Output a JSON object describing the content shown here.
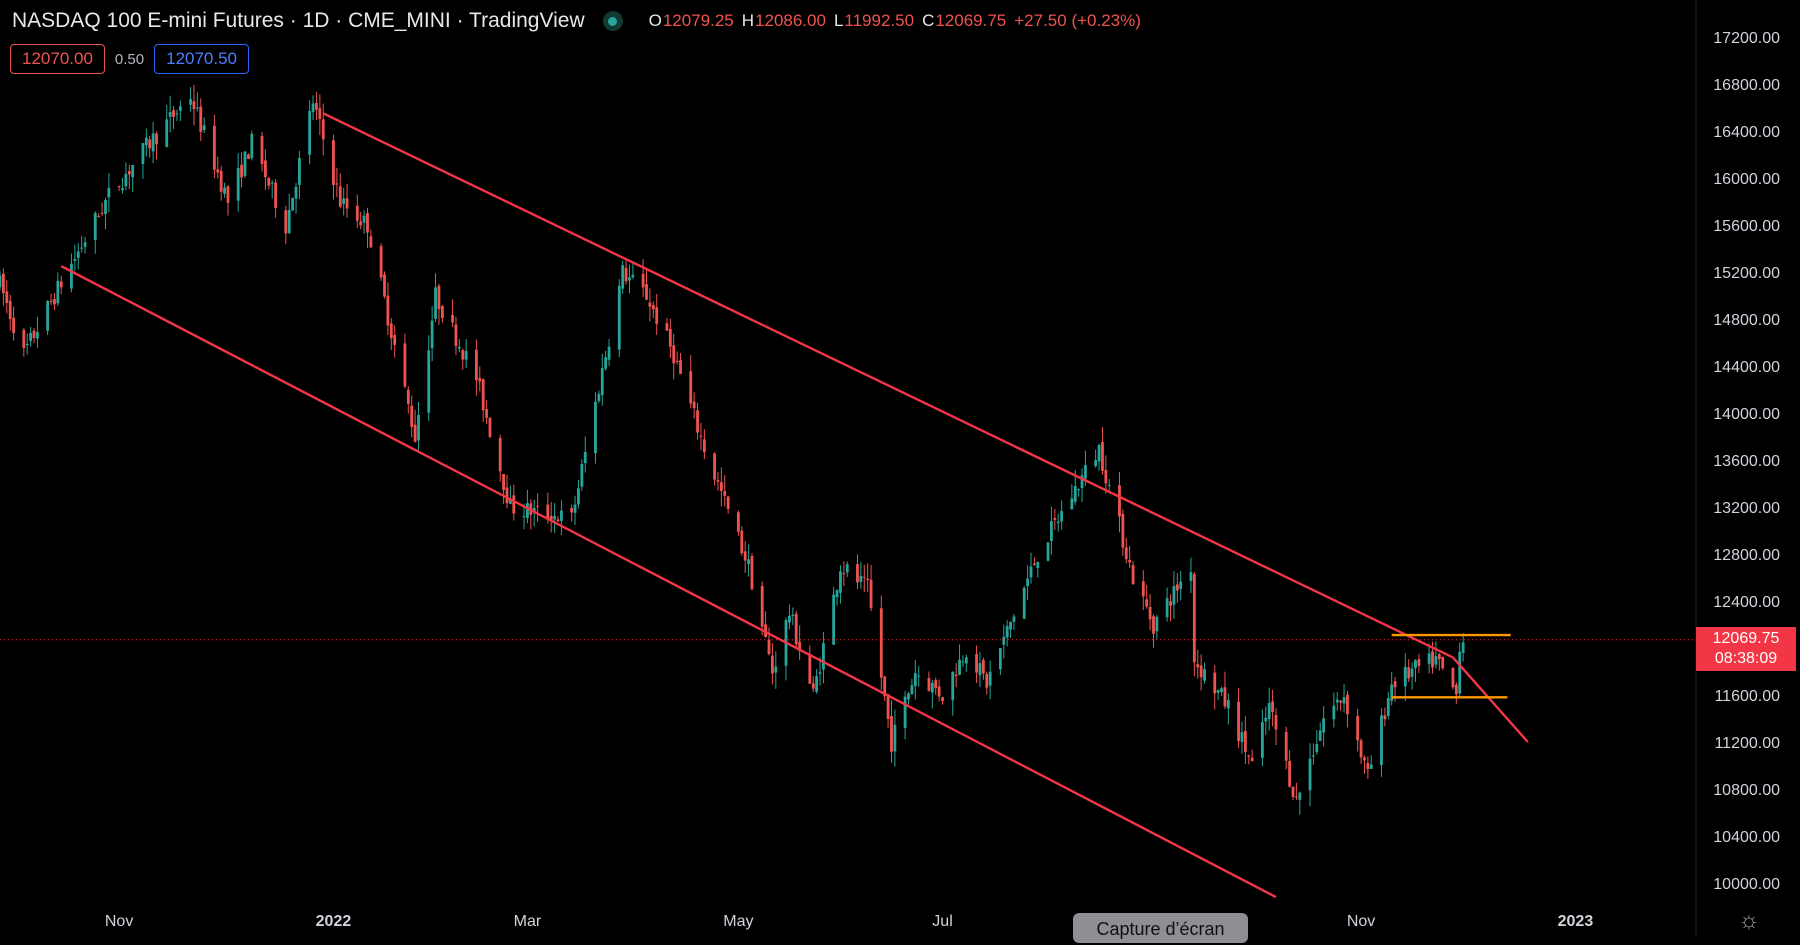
{
  "header": {
    "title": "NASDAQ 100 E-mini Futures · 1D · CME_MINI · TradingView",
    "ohlc": [
      {
        "k": "O",
        "v": "12079.25"
      },
      {
        "k": "H",
        "v": "12086.00"
      },
      {
        "k": "L",
        "v": "11992.50"
      },
      {
        "k": "C",
        "v": "12069.75"
      }
    ],
    "change": "+27.50 (+0.23%)"
  },
  "trade": {
    "sell": "12070.00",
    "spread": "0.50",
    "buy": "12070.50"
  },
  "last_price": {
    "price": "12069.75",
    "countdown": "08:38:09"
  },
  "overlay_label": "Capture d’écran",
  "colors": {
    "up": "#26a69a",
    "down": "#ef5350",
    "channel": "#f23645",
    "range": "#ff9800",
    "bg": "#000000"
  },
  "chart_data": {
    "type": "candlestick",
    "title": "NASDAQ 100 E-mini Futures · 1D · CME_MINI · TradingView",
    "ylim": [
      9800,
      17400
    ],
    "y_ticks": [
      10000,
      10400,
      10800,
      11200,
      11600,
      12000,
      12400,
      12800,
      13200,
      13600,
      14000,
      14400,
      14800,
      15200,
      15600,
      16000,
      16400,
      16800,
      17200
    ],
    "y_tick_labels": [
      "10000.00",
      "10400.00",
      "10800.00",
      "11200.00",
      "11600.00",
      "12000.00",
      "12400.00",
      "12800.00",
      "13200.00",
      "13600.00",
      "14000.00",
      "14400.00",
      "14800.00",
      "15200.00",
      "15600.00",
      "16000.00",
      "16400.00",
      "16800.00",
      "17200.00"
    ],
    "x_ticks": [
      {
        "label": "Nov",
        "date": "2021-11-01",
        "bold": false
      },
      {
        "label": "2022",
        "date": "2022-01-03",
        "bold": true
      },
      {
        "label": "Mar",
        "date": "2022-03-01",
        "bold": false
      },
      {
        "label": "May",
        "date": "2022-05-02",
        "bold": false
      },
      {
        "label": "Jul",
        "date": "2022-07-01",
        "bold": false
      },
      {
        "label": "Nov",
        "date": "2022-11-01",
        "bold": false
      },
      {
        "label": "2023",
        "date": "2023-01-03",
        "bold": true
      }
    ],
    "visible_range": [
      "2021-09-27",
      "2023-03-10"
    ],
    "price_path": [
      [
        "2021-09-27",
        15100
      ],
      [
        "2021-10-04",
        14500
      ],
      [
        "2021-10-13",
        15000
      ],
      [
        "2021-10-29",
        15850
      ],
      [
        "2021-11-10",
        16300
      ],
      [
        "2021-11-22",
        16700
      ],
      [
        "2021-12-03",
        15800
      ],
      [
        "2021-12-10",
        16300
      ],
      [
        "2021-12-20",
        15600
      ],
      [
        "2021-12-28",
        16650
      ],
      [
        "2022-01-05",
        15800
      ],
      [
        "2022-01-13",
        15600
      ],
      [
        "2022-01-27",
        13800
      ],
      [
        "2022-02-02",
        15000
      ],
      [
        "2022-02-14",
        14300
      ],
      [
        "2022-02-24",
        13200
      ],
      [
        "2022-03-14",
        13100
      ],
      [
        "2022-03-29",
        15200
      ],
      [
        "2022-04-05",
        15000
      ],
      [
        "2022-04-13",
        14500
      ],
      [
        "2022-04-22",
        13700
      ],
      [
        "2022-05-05",
        12700
      ],
      [
        "2022-05-12",
        11800
      ],
      [
        "2022-05-17",
        12300
      ],
      [
        "2022-05-24",
        11600
      ],
      [
        "2022-06-01",
        12700
      ],
      [
        "2022-06-09",
        12500
      ],
      [
        "2022-06-16",
        11200
      ],
      [
        "2022-06-23",
        11800
      ],
      [
        "2022-07-01",
        11600
      ],
      [
        "2022-07-08",
        12000
      ],
      [
        "2022-07-14",
        11700
      ],
      [
        "2022-07-29",
        12800
      ],
      [
        "2022-08-16",
        13700
      ],
      [
        "2022-08-26",
        12600
      ],
      [
        "2022-09-01",
        12200
      ],
      [
        "2022-09-12",
        12700
      ],
      [
        "2022-09-13",
        11900
      ],
      [
        "2022-09-23",
        11500
      ],
      [
        "2022-09-30",
        11000
      ],
      [
        "2022-10-05",
        11500
      ],
      [
        "2022-10-13",
        10700
      ],
      [
        "2022-10-21",
        11400
      ],
      [
        "2022-10-27",
        11600
      ],
      [
        "2022-11-03",
        10900
      ],
      [
        "2022-11-10",
        11700
      ],
      [
        "2022-11-16",
        11800
      ],
      [
        "2022-11-23",
        11900
      ],
      [
        "2022-11-29",
        11600
      ],
      [
        "2022-11-30",
        12050
      ],
      [
        "2022-12-01",
        12070
      ]
    ],
    "drawings": [
      {
        "type": "trendline",
        "name": "channel-upper",
        "from": [
          "2021-12-31",
          16550
        ],
        "to": [
          "2022-11-28",
          11920
        ]
      },
      {
        "type": "trendline",
        "name": "channel-lower-extended",
        "from": [
          "2022-11-28",
          11920
        ],
        "to": [
          "2022-12-20",
          11200
        ]
      },
      {
        "type": "trendline",
        "name": "channel-lower",
        "from": [
          "2021-10-15",
          15250
        ],
        "to": [
          "2022-10-07",
          9880
        ]
      },
      {
        "type": "horizontal",
        "name": "range-top",
        "price": 12110,
        "from": "2022-11-10",
        "to": "2022-12-15"
      },
      {
        "type": "horizontal",
        "name": "range-bottom",
        "price": 11580,
        "from": "2022-11-10",
        "to": "2022-12-14"
      }
    ],
    "last_price": 12069.75
  }
}
